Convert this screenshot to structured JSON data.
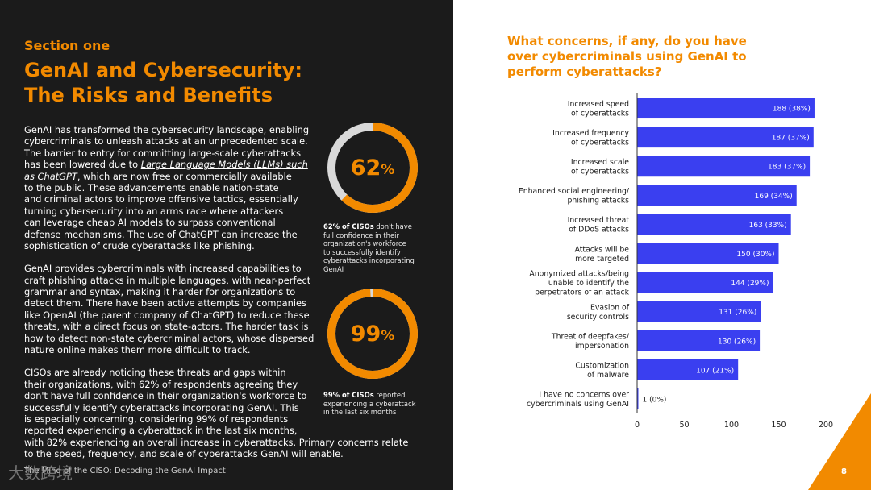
{
  "section_label": "Section one",
  "title_lines": [
    "GenAI and Cybersecurity:",
    "The Risks and Benefits"
  ],
  "paragraph1": {
    "lines": [
      "GenAI has transformed the cybersecurity landscape, enabling",
      "cybercriminals to unleash attacks at an unprecedented scale.",
      "The barrier to entry for committing large-scale cyberattacks"
    ],
    "line4_pre": "has been lowered due to ",
    "link_part1": "Large Language Models (LLMs) such",
    "link_part2": "as ChatGPT",
    "line5_post": ", which are now free or commercially available",
    "lines_after": [
      "to the public. These advancements enable nation-state",
      "and criminal actors to improve offensive tactics, essentially",
      "turning cybersecurity into an arms race where attackers",
      "can leverage cheap AI models to surpass conventional",
      "defense mechanisms. The use of ChatGPT can increase the",
      "sophistication of crude cyberattacks like phishing."
    ]
  },
  "paragraph2": {
    "lines": [
      "GenAI provides cybercriminals with increased capabilities to",
      "craft phishing attacks in multiple languages, with near-perfect",
      "grammar and syntax, making it harder for organizations to",
      "detect them. There have been active attempts by companies",
      "like OpenAI (the parent company of ChatGPT) to reduce these",
      "threats, with a direct focus on state-actors. The harder task is",
      "how to detect non-state cybercriminal actors, whose dispersed",
      "nature online makes them more difficult to track."
    ]
  },
  "paragraph3": {
    "lines": [
      "CISOs are already noticing these threats and gaps within",
      "their organizations, with 62% of respondents agreeing they",
      "don't have full confidence in their organization's workforce to",
      "successfully identify cyberattacks incorporating GenAI. This",
      "is especially concerning, considering 99% of respondents",
      "reported experiencing a cyberattack in the last six months,",
      "with 82% experiencing an overall increase in cyberattacks. Primary concerns relate",
      "to the speed, frequency, and scale of cyberattacks GenAI will enable."
    ]
  },
  "stat1": {
    "number": "62",
    "unit": "%",
    "fraction": 0.62,
    "bold": "62% of CISOs",
    "caption_first": " don't have",
    "caption_lines": [
      "full confidence in their",
      "organization's workforce",
      "to successfully identify",
      "cyberattacks incorporating",
      "GenAI"
    ]
  },
  "stat2": {
    "number": "99",
    "unit": "%",
    "fraction": 0.99,
    "bold": "99% of CISOs",
    "caption_first": " reported",
    "caption_lines": [
      "experiencing a cyberattack",
      "in the last six months"
    ]
  },
  "footer": {
    "text": "The Mind of the CISO: Decoding the GenAI Impact",
    "watermark": "大数跨境",
    "page_number": "8"
  },
  "colors": {
    "accent": "#f28a00",
    "bar": "#3a3ff0",
    "dark_bg": "#1b1b1b",
    "ring_bg": "#d9d9d9"
  },
  "chart_data": {
    "type": "bar",
    "orientation": "horizontal",
    "title_lines": [
      "What concerns, if any, do you have",
      "over cybercriminals using GenAI to",
      "perform cyberattacks?"
    ],
    "categories": [
      [
        "Increased speed",
        "of cyberattacks"
      ],
      [
        "Increased frequency",
        "of cyberattacks"
      ],
      [
        "Increased scale",
        "of cyberattacks"
      ],
      [
        "Enhanced social engineering/",
        "phishing attacks"
      ],
      [
        "Increased threat",
        "of DDoS attacks"
      ],
      [
        "Attacks will be",
        "more targeted"
      ],
      [
        "Anonymized attacks/being",
        "unable to identify the",
        "perpetrators of an attack"
      ],
      [
        "Evasion of",
        "security controls"
      ],
      [
        "Threat of deepfakes/",
        "impersonation"
      ],
      [
        "Customization",
        "of malware"
      ],
      [
        "I have no concerns over",
        "cybercriminals using GenAI"
      ]
    ],
    "values": [
      188,
      187,
      183,
      169,
      163,
      150,
      144,
      131,
      130,
      107,
      1
    ],
    "labels": [
      "188 (38%)",
      "187 (37%)",
      "183 (37%)",
      "169 (34%)",
      "163 (33%)",
      "150 (30%)",
      "144 (29%)",
      "131 (26%)",
      "130 (26%)",
      "107 (21%)",
      "1 (0%)"
    ],
    "x_ticks": [
      0,
      50,
      100,
      150,
      200
    ],
    "xlim": [
      0,
      200
    ]
  }
}
